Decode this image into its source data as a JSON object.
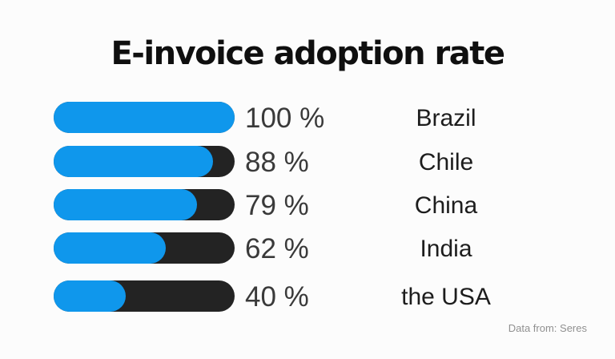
{
  "title": "E-invoice adoption rate",
  "attribution": "Data from: Seres",
  "colors": {
    "background": "#fcfcfc",
    "bar_fill": "#0f97ec",
    "bar_track": "#232323",
    "title_text": "#0f0f0f",
    "value_text": "#3a3a3a",
    "category_text": "#1d1d1d",
    "attribution_text": "#909090"
  },
  "chart_data": {
    "type": "bar",
    "orientation": "horizontal",
    "title": "E-invoice adoption rate",
    "categories": [
      "Brazil",
      "Chile",
      "China",
      "India",
      "the USA"
    ],
    "values": [
      100,
      88,
      79,
      62,
      40
    ],
    "value_labels": [
      "100 %",
      "88 %",
      "79 %",
      "62 %",
      "40 %"
    ],
    "unit": "%",
    "xlim": [
      0,
      100
    ],
    "grid": false,
    "legend": false,
    "source_note": "Data from: Seres"
  }
}
